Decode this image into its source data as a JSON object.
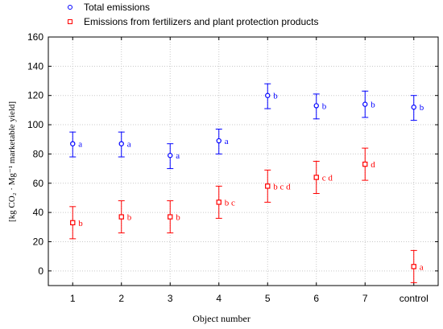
{
  "chart_data": {
    "type": "scatter",
    "xlabel": "Object number",
    "ylabel": "[kg CO₂ · Mg⁻¹ marketable yield]",
    "categories": [
      "1",
      "2",
      "3",
      "4",
      "5",
      "6",
      "7",
      "control"
    ],
    "ylim": [
      -10,
      160
    ],
    "yticks": [
      0,
      20,
      40,
      60,
      80,
      100,
      120,
      140,
      160
    ],
    "grid": true,
    "legend_position": "top-left",
    "series": [
      {
        "name": "Total emissions",
        "marker": "circle",
        "color": "#0000ff",
        "values": [
          87,
          87,
          79,
          89,
          120,
          113,
          114,
          112
        ],
        "error_low": [
          78,
          78,
          70,
          80,
          111,
          104,
          105,
          103
        ],
        "error_high": [
          95,
          95,
          87,
          97,
          128,
          121,
          123,
          120
        ],
        "labels": [
          "a",
          "a",
          "a",
          "a",
          "b",
          "b",
          "b",
          "b"
        ]
      },
      {
        "name": "Emissions from fertilizers and plant protection products",
        "marker": "square",
        "color": "#ff0000",
        "values": [
          33,
          37,
          37,
          47,
          58,
          64,
          73,
          3
        ],
        "error_low": [
          22,
          26,
          26,
          36,
          47,
          53,
          62,
          -8
        ],
        "error_high": [
          44,
          48,
          48,
          58,
          69,
          75,
          84,
          14
        ],
        "labels": [
          "b",
          "b",
          "b",
          "b c",
          "b c d",
          "c d",
          "d",
          "a"
        ]
      }
    ]
  }
}
